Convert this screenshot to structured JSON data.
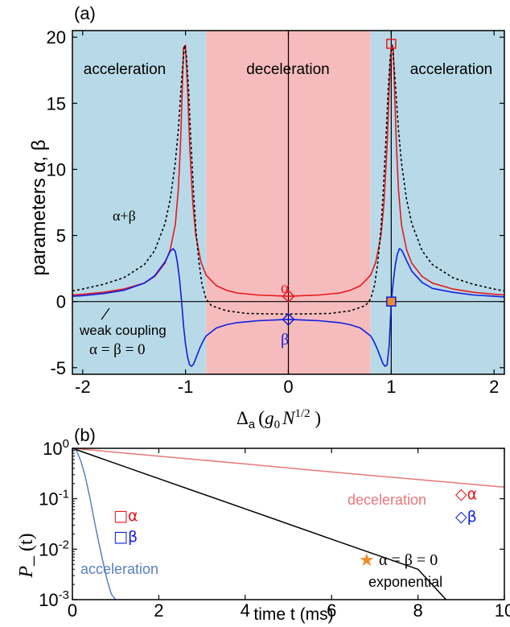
{
  "chart_data": [
    {
      "panel": "(a)",
      "type": "line",
      "xlabel": "Δa (g0 N^1/2 )",
      "xlabel_parts": {
        "delta": "Δ",
        "sub_a": "a",
        "g": "g",
        "sub0": "0",
        "N": "N",
        "sup": "1/2",
        "close": " )"
      },
      "ylabel": "parameters α, β",
      "xlim": [
        -2.1,
        2.1
      ],
      "ylim": [
        -5.5,
        20.5
      ],
      "xticks": [
        "-2",
        "-1",
        "0",
        "1",
        "2"
      ],
      "yticks": [
        "-5",
        "0",
        "5",
        "10",
        "15",
        "20"
      ],
      "xtick_values": [
        -2,
        -1,
        0,
        1,
        2
      ],
      "ytick_values": [
        -5,
        0,
        5,
        10,
        15,
        20
      ],
      "regions": [
        {
          "label": "acceleration",
          "x0": -2.1,
          "x1": -0.8,
          "color": "#b8dae8"
        },
        {
          "label": "deceleration",
          "x0": -0.8,
          "x1": 0.8,
          "color": "#f6bcbd"
        },
        {
          "label": "acceleration",
          "x0": 0.8,
          "x1": 2.1,
          "color": "#b8dae8"
        }
      ],
      "series": [
        {
          "name": "α",
          "color": "#e8171d",
          "x": [
            -2.1,
            -2.0,
            -1.8,
            -1.6,
            -1.4,
            -1.3,
            -1.2,
            -1.15,
            -1.1,
            -1.07,
            -1.05,
            -1.03,
            -1.02,
            -1.0,
            -0.98,
            -0.96,
            -0.93,
            -0.9,
            -0.85,
            -0.8,
            -0.7,
            -0.6,
            -0.5,
            -0.3,
            0.0,
            0.3,
            0.5,
            0.6,
            0.7,
            0.8,
            0.85,
            0.9,
            0.93,
            0.96,
            0.98,
            1.0,
            1.02,
            1.03,
            1.05,
            1.07,
            1.1,
            1.15,
            1.2,
            1.3,
            1.4,
            1.6,
            1.8,
            2.0,
            2.1
          ],
          "y": [
            0.5,
            0.55,
            0.7,
            0.95,
            1.4,
            1.9,
            2.9,
            3.9,
            5.8,
            8.5,
            11.8,
            16.5,
            19.2,
            19.4,
            16.0,
            11.8,
            7.5,
            5.0,
            3.0,
            2.0,
            1.2,
            0.85,
            0.65,
            0.5,
            0.4,
            0.5,
            0.65,
            0.85,
            1.2,
            2.0,
            3.0,
            5.0,
            7.5,
            11.8,
            16.0,
            19.4,
            19.2,
            16.5,
            11.8,
            8.5,
            5.8,
            3.9,
            2.9,
            1.9,
            1.4,
            0.95,
            0.7,
            0.55,
            0.5
          ]
        },
        {
          "name": "β",
          "color": "#0e1ee0",
          "x": [
            -2.1,
            -2.0,
            -1.8,
            -1.6,
            -1.4,
            -1.3,
            -1.2,
            -1.15,
            -1.12,
            -1.1,
            -1.08,
            -1.06,
            -1.04,
            -1.02,
            -1.0,
            -0.98,
            -0.96,
            -0.94,
            -0.92,
            -0.9,
            -0.88,
            -0.86,
            -0.83,
            -0.8,
            -0.7,
            -0.6,
            -0.5,
            -0.3,
            0.0,
            0.3,
            0.5,
            0.6,
            0.7,
            0.8,
            0.83,
            0.86,
            0.88,
            0.9,
            0.92,
            0.94,
            0.96,
            0.98,
            1.0,
            1.02,
            1.04,
            1.06,
            1.08,
            1.1,
            1.12,
            1.15,
            1.2,
            1.3,
            1.4,
            1.6,
            1.8,
            2.0,
            2.1
          ],
          "y": [
            0.4,
            0.45,
            0.6,
            0.85,
            1.4,
            1.95,
            3.0,
            3.8,
            4.0,
            3.8,
            3.0,
            1.8,
            0.2,
            -1.8,
            -3.2,
            -4.2,
            -4.8,
            -4.9,
            -4.7,
            -4.3,
            -3.9,
            -3.5,
            -3.0,
            -2.6,
            -2.0,
            -1.75,
            -1.6,
            -1.45,
            -1.35,
            -1.45,
            -1.6,
            -1.75,
            -2.0,
            -2.6,
            -3.0,
            -3.5,
            -3.9,
            -4.3,
            -4.7,
            -4.9,
            -4.8,
            -3.3,
            -0.05,
            1.5,
            2.8,
            3.6,
            4.0,
            3.9,
            3.6,
            3.1,
            2.3,
            1.45,
            1.0,
            0.7,
            0.5,
            0.4,
            0.35
          ]
        },
        {
          "name": "α+β",
          "color": "#000000",
          "dash": true,
          "x": [
            -2.1,
            -2.0,
            -1.8,
            -1.6,
            -1.4,
            -1.3,
            -1.2,
            -1.15,
            -1.1,
            -1.07,
            -1.04,
            -1.02,
            -1.01,
            -0.99,
            -0.97,
            -0.95,
            -0.92,
            -0.9,
            -0.87,
            -0.84,
            -0.8,
            -0.75,
            -0.6,
            -0.4,
            0.0,
            0.4,
            0.6,
            0.75,
            0.8,
            0.84,
            0.87,
            0.9,
            0.92,
            0.95,
            0.97,
            0.99,
            1.01,
            1.02,
            1.04,
            1.07,
            1.1,
            1.15,
            1.2,
            1.3,
            1.4,
            1.6,
            1.8,
            2.0,
            2.1
          ],
          "y": [
            0.8,
            0.95,
            1.3,
            1.8,
            2.8,
            3.85,
            5.9,
            7.7,
            10.5,
            13.0,
            16.5,
            18.5,
            19.4,
            18.5,
            16.0,
            12.5,
            8.0,
            5.5,
            3.0,
            1.3,
            0.2,
            -0.3,
            -0.7,
            -0.9,
            -0.95,
            -0.9,
            -0.7,
            -0.3,
            0.2,
            1.3,
            3.0,
            5.5,
            8.0,
            12.5,
            16.0,
            18.5,
            19.4,
            18.5,
            16.5,
            13.0,
            10.5,
            7.7,
            5.9,
            3.85,
            2.8,
            1.8,
            1.3,
            0.95,
            0.8
          ]
        }
      ],
      "markers": [
        {
          "shape": "square",
          "x": 1.0,
          "y": 19.5,
          "stroke": "#e8171d",
          "fill": "none"
        },
        {
          "shape": "square",
          "x": 1.0,
          "y": 0.0,
          "stroke": "#0e1ee0",
          "fill": "#f08a2e"
        },
        {
          "shape": "diamond",
          "x": 0.0,
          "y": 0.4,
          "stroke": "#e8171d",
          "fill": "none"
        },
        {
          "shape": "diamond",
          "x": 0.0,
          "y": -1.35,
          "stroke": "#0e1ee0",
          "fill": "none"
        }
      ],
      "annotations": {
        "region_left": "acceleration",
        "region_mid": "deceleration",
        "region_right": "acceleration",
        "sum_label": "α+β",
        "alpha_label": "α",
        "beta_label": "β",
        "weak_line1": "weak coupling",
        "weak_line2": "α = β = 0"
      }
    },
    {
      "panel": "(b)",
      "type": "line",
      "xlabel": "time t (ms)",
      "ylabel": "P_ (t)",
      "yscale": "log",
      "xlim": [
        0,
        10
      ],
      "ylim": [
        0.001,
        1.0
      ],
      "xticks": [
        "0",
        "2",
        "4",
        "6",
        "8",
        "10"
      ],
      "xtick_values": [
        0,
        2,
        4,
        6,
        8,
        10
      ],
      "yticks": [
        "10^0",
        "10^-1",
        "10^-2",
        "10^-3"
      ],
      "ytick_parts": [
        {
          "base": "10",
          "exp": "0"
        },
        {
          "base": "10",
          "exp": "-1"
        },
        {
          "base": "10",
          "exp": "-2"
        },
        {
          "base": "10",
          "exp": "-3"
        }
      ],
      "ytick_values": [
        1.0,
        0.1,
        0.01,
        0.001
      ],
      "series": [
        {
          "name": "deceleration",
          "color": "#e8777a",
          "x": [
            0,
            2,
            4,
            6,
            8,
            10
          ],
          "y": [
            1.0,
            0.7,
            0.49,
            0.34,
            0.24,
            0.17
          ]
        },
        {
          "name": "exponential",
          "color": "#000000",
          "x": [
            0,
            2,
            4,
            6,
            8,
            8.65
          ],
          "y": [
            1.0,
            0.25,
            0.063,
            0.0158,
            0.004,
            0.001
          ]
        },
        {
          "name": "acceleration",
          "color": "#5b7fbf",
          "x": [
            0,
            0.1,
            0.2,
            0.3,
            0.4,
            0.5,
            0.6,
            0.7,
            0.8,
            0.9,
            1.0
          ],
          "y": [
            1.0,
            0.88,
            0.55,
            0.27,
            0.11,
            0.04,
            0.015,
            0.006,
            0.0025,
            0.0013,
            0.001
          ]
        }
      ],
      "legend": {
        "diamond_alpha": "◇α",
        "diamond_beta": "◇β",
        "square_alpha": "□α",
        "square_beta": "□β",
        "star": "★",
        "star_text": "α = β = 0"
      },
      "annotations": {
        "decel": "deceleration",
        "accel": "acceleration",
        "expo": "exponential"
      }
    }
  ],
  "text": {
    "tag_a": "(a)",
    "tag_b": "(b)",
    "ylabel_a": "parameters α,  β",
    "ylabel_b_P": "P",
    "ylabel_b_rest": "_ (t)",
    "xlabel_b": "time t (ms)"
  }
}
